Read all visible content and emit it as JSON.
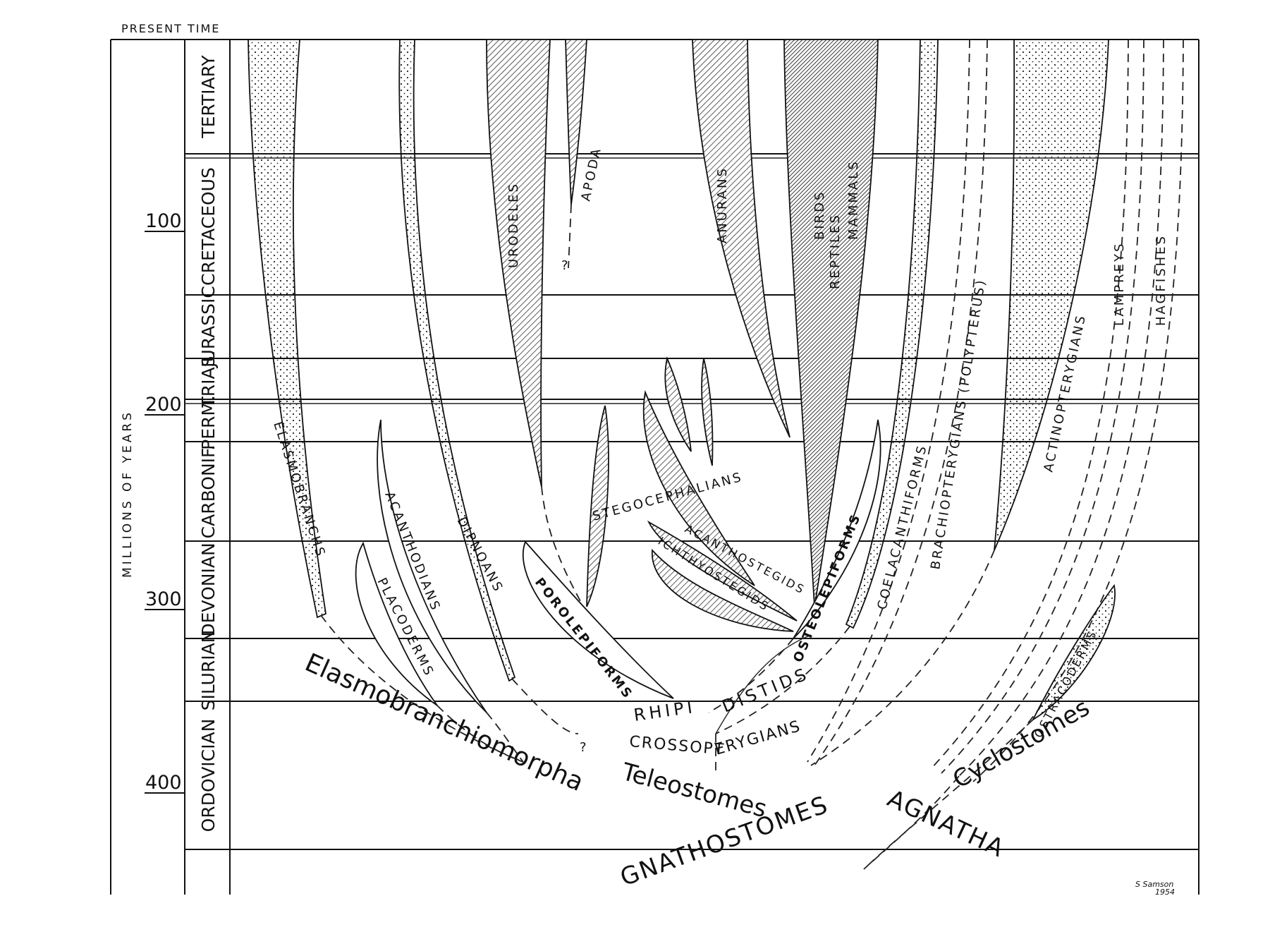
{
  "header": {
    "present_time": "PRESENT TIME"
  },
  "axis": {
    "title": "MILLIONS OF YEARS",
    "ticks": [
      "100",
      "200",
      "300",
      "400"
    ]
  },
  "periods": [
    "TERTIARY",
    "CRETACEOUS",
    "JURASSIC",
    "TRIAS.",
    "PERM.",
    "CARBONIF.",
    "DEVONIAN",
    "SILURIAN",
    "ORDOVICIAN"
  ],
  "lineages": {
    "elasmobranchs": "ELASMOBRANCHS",
    "placoderms": "PLACODERMS",
    "acanthodians": "ACANTHODIANS",
    "dipnoans": "DIPNOANS",
    "porolepiforms": "POROLEPIFORMS",
    "urodeles": "URODELES",
    "apoda": "APODA",
    "stegocephalians": "STEGOCEPHALIANS",
    "acanthostegids": "ACANTHOSTEGIDS",
    "ichthyostegids": "ICHTHYOSTEGIDS",
    "anurans": "ANURANS",
    "birds": "BIRDS",
    "reptiles": "REPTILES",
    "mammals": "MAMMALS",
    "osteolepiforms": "OSTEOLEPIFORMS",
    "coelacanthiforms": "COELACANTHIFORMS",
    "brachiopterygians": "BRACHIOPTERYGIANS (POLYPTERUS)",
    "actinopterygians": "ACTINOPTERYGIANS",
    "lampreys": "LAMPREYS",
    "hagfishes": "HAGFISHES",
    "ostracoderms": "OSTRACODERMS"
  },
  "groups": {
    "rhipidistids_a": "RHIPI",
    "rhipidistids_b": "DISTIDS",
    "crossopterygians_a": "CROSSOPT",
    "crossopterygians_b": "ERYGIANS",
    "elasmobranchiomorpha": "Elasmobranchiomorpha",
    "teleostomes": "Teleostomes",
    "cyclostomes": "Cyclostomes",
    "gnathostomes": "GNATHOSTOMES",
    "agnatha": "AGNATHA"
  },
  "question_marks": [
    "?",
    "?"
  ],
  "signature": {
    "name": "S Samson",
    "year": "1954"
  }
}
